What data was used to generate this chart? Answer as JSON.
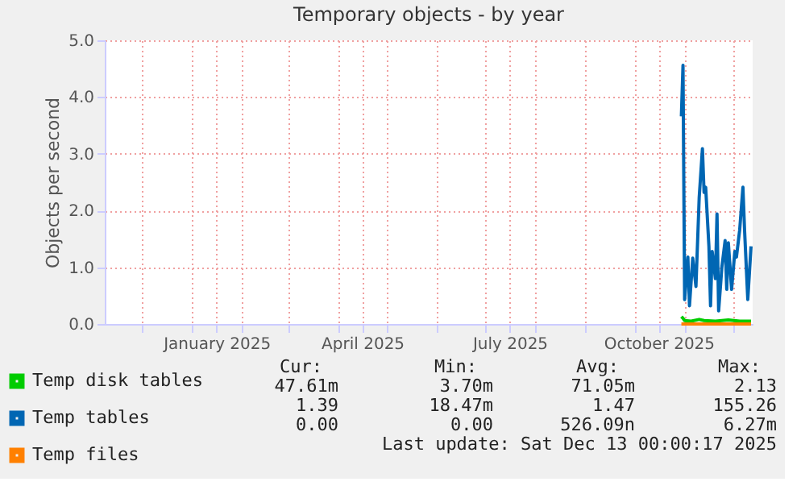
{
  "chart_data": {
    "type": "line",
    "title": "Temporary objects - by year",
    "ylabel": "Objects per second",
    "xlim": [
      "2024-11-08",
      "2025-12-13"
    ],
    "xticks": [
      {
        "value": "2024-12-01",
        "label": null
      },
      {
        "value": "2025-01-01",
        "label": null
      },
      {
        "value": "2025-01-16",
        "label": "January 2025"
      },
      {
        "value": "2025-02-01",
        "label": null
      },
      {
        "value": "2025-03-01",
        "label": null
      },
      {
        "value": "2025-04-01",
        "label": null
      },
      {
        "value": "2025-04-16",
        "label": "April 2025"
      },
      {
        "value": "2025-05-01",
        "label": null
      },
      {
        "value": "2025-06-01",
        "label": null
      },
      {
        "value": "2025-07-01",
        "label": null
      },
      {
        "value": "2025-07-16",
        "label": "July 2025"
      },
      {
        "value": "2025-08-01",
        "label": null
      },
      {
        "value": "2025-09-01",
        "label": null
      },
      {
        "value": "2025-10-01",
        "label": null
      },
      {
        "value": "2025-10-16",
        "label": "October 2025"
      },
      {
        "value": "2025-11-01",
        "label": null
      },
      {
        "value": "2025-12-01",
        "label": null
      }
    ],
    "ylim": [
      0,
      5
    ],
    "yticks": [
      {
        "value": 0,
        "label": "0.0"
      },
      {
        "value": 1,
        "label": "1.0"
      },
      {
        "value": 2,
        "label": "2.0"
      },
      {
        "value": 3,
        "label": "3.0"
      },
      {
        "value": 4,
        "label": "4.0"
      },
      {
        "value": 5,
        "label": "5.0"
      }
    ],
    "grid": true,
    "legend": "bottom left",
    "line_style": "solid",
    "marker": "none",
    "series": [
      {
        "name": "Temp disk tables",
        "color": "#00cc00",
        "x": [
          "2025-10-30",
          "2025-10-31",
          "2025-11-01",
          "2025-11-05",
          "2025-11-10",
          "2025-11-13",
          "2025-11-20",
          "2025-11-28",
          "2025-12-05",
          "2025-12-12"
        ],
        "values": [
          0.13,
          0.1,
          0.06,
          0.05,
          0.08,
          0.06,
          0.05,
          0.07,
          0.05,
          0.05
        ]
      },
      {
        "name": "Temp tables",
        "color": "#0066b3",
        "x": [
          "2025-10-30",
          "2025-10-31",
          "2025-11-01",
          "2025-11-03",
          "2025-11-04",
          "2025-11-06",
          "2025-11-08",
          "2025-11-10",
          "2025-11-12",
          "2025-11-13",
          "2025-11-14",
          "2025-11-16",
          "2025-11-17",
          "2025-11-18",
          "2025-11-20",
          "2025-11-21",
          "2025-11-22",
          "2025-11-24",
          "2025-11-26",
          "2025-11-27",
          "2025-11-28",
          "2025-11-30",
          "2025-12-02",
          "2025-12-03",
          "2025-12-05",
          "2025-12-07",
          "2025-12-08",
          "2025-12-10",
          "2025-12-12"
        ],
        "values": [
          3.66,
          4.56,
          0.43,
          1.18,
          0.32,
          1.16,
          0.66,
          2.23,
          3.09,
          2.32,
          2.41,
          1.37,
          0.32,
          1.28,
          0.8,
          1.94,
          0.23,
          1.0,
          1.47,
          0.61,
          1.43,
          0.61,
          1.28,
          1.18,
          1.66,
          2.41,
          1.66,
          0.43,
          1.37
        ]
      },
      {
        "name": "Temp files",
        "color": "#ff8000",
        "x": [
          "2025-10-30",
          "2025-12-12"
        ],
        "values": [
          0.0,
          0.0
        ]
      }
    ],
    "annotations": [
      "Cur:",
      "Min:",
      "Avg:",
      "Max:",
      "47.61m",
      "3.70m",
      "71.05m",
      "2.13",
      "1.39",
      "18.47m",
      "1.47",
      "155.26",
      "0.00",
      "0.00",
      "526.09n",
      "6.27m",
      "Last update:  Sat Dec 13 00:00:17 2025"
    ]
  }
}
